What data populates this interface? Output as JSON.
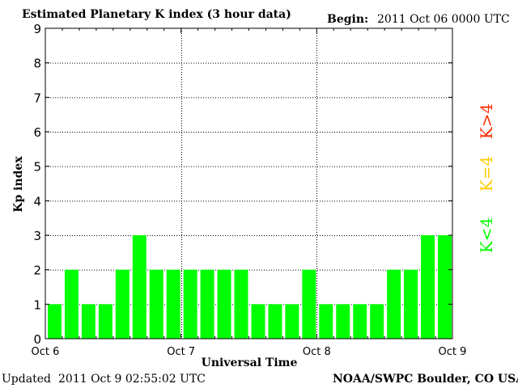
{
  "header": {
    "title": "Estimated Planetary K index (3 hour data)",
    "begin_label": "Begin:",
    "begin_value": "2011 Oct 06 0000 UTC"
  },
  "footer": {
    "updated_label": "Updated",
    "updated_value": "2011 Oct  9 02:55:02 UTC",
    "source": "NOAA/SWPC Boulder, CO USA"
  },
  "legend": {
    "high": "K>4",
    "equal": "K=4",
    "low": "K<4"
  },
  "colors": {
    "bar": "#00ff00",
    "high": "#ff2a00",
    "equal": "#ffcc00",
    "low": "#00ff00"
  },
  "chart_data": {
    "type": "bar",
    "title": "Estimated Planetary K index (3 hour data)",
    "xlabel": "Universal Time",
    "ylabel": "Kp index",
    "ylim": [
      0,
      9
    ],
    "yticks": [
      "0",
      "1",
      "2",
      "3",
      "4",
      "5",
      "6",
      "7",
      "8",
      "9"
    ],
    "xticks": [
      "Oct 6",
      "Oct 7",
      "Oct 8",
      "Oct 9"
    ],
    "grid": true,
    "values": [
      1,
      2,
      1,
      1,
      2,
      3,
      2,
      2,
      2,
      2,
      2,
      2,
      1,
      1,
      1,
      2,
      1,
      1,
      1,
      1,
      2,
      2,
      3,
      3
    ]
  }
}
